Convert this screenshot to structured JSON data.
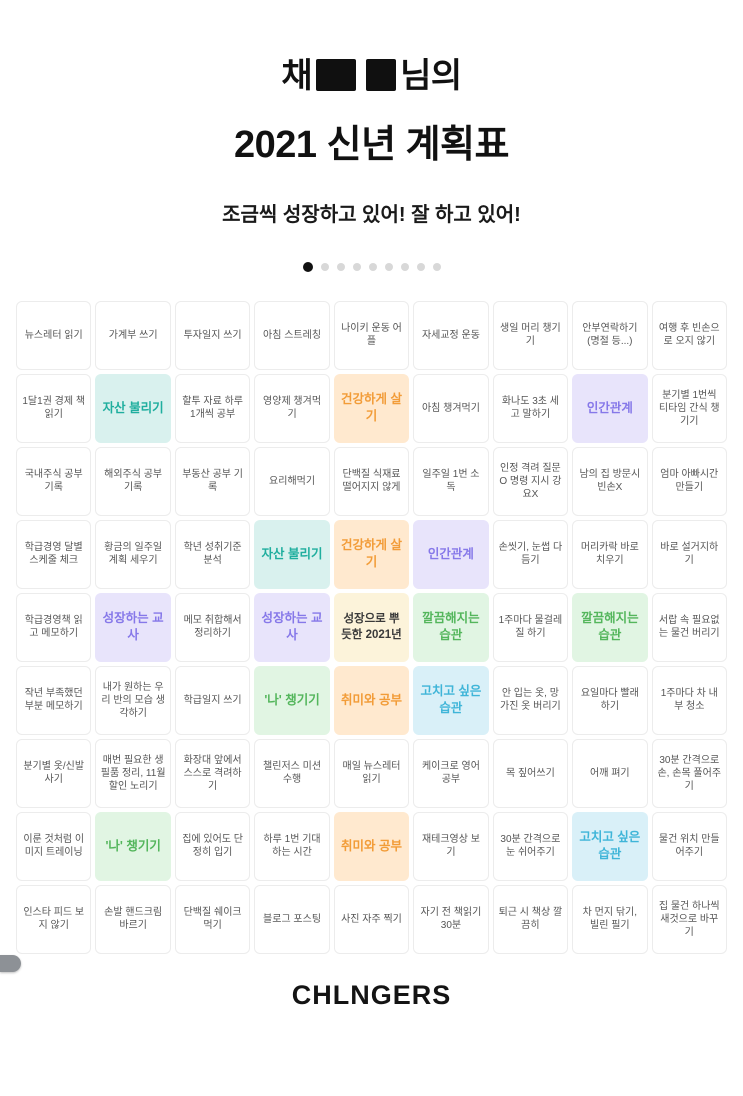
{
  "header": {
    "title_prefix": "채",
    "title_suffix": "님의",
    "title_line2": "2021 신년 계획표",
    "subtitle": "조금씩 성장하고 있어! 잘 하고 있어!"
  },
  "pagination": {
    "count": 9,
    "active_index": 0
  },
  "footer": {
    "logo": "CHLNGERS"
  },
  "styles": {
    "plain": {
      "bg": "#ffffff",
      "fg": "#555555"
    },
    "teal": {
      "bg": "#d9f1ee",
      "fg": "#1fae9e"
    },
    "orange": {
      "bg": "#ffe9cf",
      "fg": "#f29c38"
    },
    "purple": {
      "bg": "#e8e4fb",
      "fg": "#8678e9"
    },
    "green": {
      "bg": "#e1f5e3",
      "fg": "#54b65c"
    },
    "cyan": {
      "bg": "#d9f0f8",
      "fg": "#3fb5d8"
    },
    "center": {
      "bg": "#fcf3da",
      "fg": "#3a3a3a"
    }
  },
  "grid": {
    "rows": [
      {
        "cells": [
          {
            "text": "뉴스레터 읽기",
            "style": "plain"
          },
          {
            "text": "가계부 쓰기",
            "style": "plain"
          },
          {
            "text": "투자일지 쓰기",
            "style": "plain"
          },
          {
            "text": "아침 스트레칭",
            "style": "plain"
          },
          {
            "text": "나이키 운동 어플",
            "style": "plain"
          },
          {
            "text": "자세교정 운동",
            "style": "plain"
          },
          {
            "text": "생일 머리 챙기기",
            "style": "plain"
          },
          {
            "text": "안부연락하기(명절 등...)",
            "style": "plain"
          },
          {
            "text": "여행 후 빈손으로 오지 않기",
            "style": "plain"
          }
        ]
      },
      {
        "cells": [
          {
            "text": "1달1권 경제 책읽기",
            "style": "plain"
          },
          {
            "text": "자산 불리기",
            "style": "teal"
          },
          {
            "text": "할투 자료 하루 1개씩 공부",
            "style": "plain"
          },
          {
            "text": "영양제 챙겨먹기",
            "style": "plain"
          },
          {
            "text": "건강하게 살기",
            "style": "orange"
          },
          {
            "text": "아침 챙겨먹기",
            "style": "plain"
          },
          {
            "text": "화나도 3초 세고 말하기",
            "style": "plain"
          },
          {
            "text": "인간관계",
            "style": "purple"
          },
          {
            "text": "분기별 1번씩 티타임 간식 챙기기",
            "style": "plain"
          }
        ]
      },
      {
        "cells": [
          {
            "text": "국내주식 공부 기록",
            "style": "plain"
          },
          {
            "text": "해외주식 공부 기록",
            "style": "plain"
          },
          {
            "text": "부동산 공부 기록",
            "style": "plain"
          },
          {
            "text": "요리해먹기",
            "style": "plain"
          },
          {
            "text": "단백질 식재료 떨어지지 않게",
            "style": "plain"
          },
          {
            "text": "일주일 1번 소독",
            "style": "plain"
          },
          {
            "text": "인정 격려 질문O 명령 지시 강요X",
            "style": "plain"
          },
          {
            "text": "남의 집 방문시 빈손X",
            "style": "plain"
          },
          {
            "text": "엄마 아빠시간 만들기",
            "style": "plain"
          }
        ]
      },
      {
        "cells": [
          {
            "text": "학급경영 달별 스케줄 체크",
            "style": "plain"
          },
          {
            "text": "황금의 일주일 계획 세우기",
            "style": "plain"
          },
          {
            "text": "학년 성취기준 분석",
            "style": "plain"
          },
          {
            "text": "자산 불리기",
            "style": "teal"
          },
          {
            "text": "건강하게 살기",
            "style": "orange"
          },
          {
            "text": "인간관계",
            "style": "purple"
          },
          {
            "text": "손씻기, 눈썹 다듬기",
            "style": "plain"
          },
          {
            "text": "머리카락 바로 치우기",
            "style": "plain"
          },
          {
            "text": "바로 설거지하기",
            "style": "plain"
          }
        ]
      },
      {
        "cells": [
          {
            "text": "학급경영책 읽고 메모하기",
            "style": "plain"
          },
          {
            "text": "성장하는 교사",
            "style": "purple"
          },
          {
            "text": "메모 취합해서 정리하기",
            "style": "plain"
          },
          {
            "text": "성장하는 교사",
            "style": "purple"
          },
          {
            "text": "성장으로 뿌듯한 2021년",
            "style": "center"
          },
          {
            "text": "깔끔해지는 습관",
            "style": "green"
          },
          {
            "text": "1주마다 물걸레질 하기",
            "style": "plain"
          },
          {
            "text": "깔끔해지는 습관",
            "style": "green"
          },
          {
            "text": "서랍 속 필요없는 물건 버리기",
            "style": "plain"
          }
        ]
      },
      {
        "cells": [
          {
            "text": "작년 부족했던 부분 메모하기",
            "style": "plain"
          },
          {
            "text": "내가 원하는 우리 반의 모습 생각하기",
            "style": "plain"
          },
          {
            "text": "학급일지 쓰기",
            "style": "plain"
          },
          {
            "text": "'나' 챙기기",
            "style": "green"
          },
          {
            "text": "취미와 공부",
            "style": "orange"
          },
          {
            "text": "고치고 싶은 습관",
            "style": "cyan"
          },
          {
            "text": "안 입는 옷, 망가진 옷 버리기",
            "style": "plain"
          },
          {
            "text": "요일마다 빨래하기",
            "style": "plain"
          },
          {
            "text": "1주마다 차 내부 청소",
            "style": "plain"
          }
        ]
      },
      {
        "cells": [
          {
            "text": "분기별 옷/신발 사기",
            "style": "plain"
          },
          {
            "text": "매번 필요한 생필품 정리, 11월 할인 노리기",
            "style": "plain"
          },
          {
            "text": "화장대 앞에서 스스로 격려하기",
            "style": "plain"
          },
          {
            "text": "챌린저스 미션 수행",
            "style": "plain"
          },
          {
            "text": "매일 뉴스레터 읽기",
            "style": "plain"
          },
          {
            "text": "케이크로 영어공부",
            "style": "plain"
          },
          {
            "text": "목 짚어쓰기",
            "style": "plain"
          },
          {
            "text": "어깨 펴기",
            "style": "plain"
          },
          {
            "text": "30분 간격으로 손, 손목 풀어주기",
            "style": "plain"
          }
        ]
      },
      {
        "cells": [
          {
            "text": "이룬 것처럼 이미지 트레이닝",
            "style": "plain"
          },
          {
            "text": "'나' 챙기기",
            "style": "green"
          },
          {
            "text": "집에 있어도 단정히 입기",
            "style": "plain"
          },
          {
            "text": "하루 1번 기대하는 시간",
            "style": "plain"
          },
          {
            "text": "취미와 공부",
            "style": "orange"
          },
          {
            "text": "재테크영상 보기",
            "style": "plain"
          },
          {
            "text": "30분 간격으로 눈 쉬어주기",
            "style": "plain"
          },
          {
            "text": "고치고 싶은 습관",
            "style": "cyan"
          },
          {
            "text": "물건 위치 만들어주기",
            "style": "plain"
          }
        ]
      },
      {
        "cells": [
          {
            "text": "인스타 피드 보지 않기",
            "style": "plain"
          },
          {
            "text": "손발 핸드크림 바르기",
            "style": "plain"
          },
          {
            "text": "단백질 쉐이크 먹기",
            "style": "plain"
          },
          {
            "text": "블로그 포스팅",
            "style": "plain"
          },
          {
            "text": "사진 자주 찍기",
            "style": "plain"
          },
          {
            "text": "자기 전 책읽기 30분",
            "style": "plain"
          },
          {
            "text": "퇴근 시 책상 깔끔히",
            "style": "plain"
          },
          {
            "text": "차 먼지 닦기, 빌린 필기",
            "style": "plain"
          },
          {
            "text": "집 물건 하나씩 새것으로 바꾸기",
            "style": "plain"
          }
        ]
      }
    ]
  }
}
